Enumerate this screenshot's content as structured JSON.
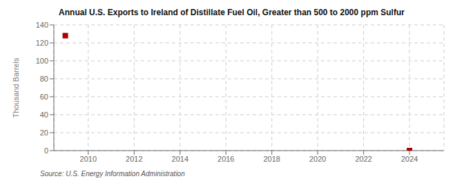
{
  "chart_data": {
    "type": "scatter",
    "title": "Annual U.S. Exports to Ireland of Distillate Fuel Oil, Greater than 500 to 2000 ppm Sulfur",
    "ylabel": "Thousand Barrels",
    "source": "Source: U.S. Energy Information Administration",
    "x": [
      2009,
      2024
    ],
    "values": [
      128,
      0
    ],
    "color": "#aa0000",
    "marker": "square",
    "xlim": [
      2008.5,
      2025.5
    ],
    "ylim": [
      0,
      140
    ],
    "xticks": [
      2010,
      2012,
      2014,
      2016,
      2018,
      2020,
      2022,
      2024
    ],
    "yticks": [
      0,
      20,
      40,
      60,
      80,
      100,
      120,
      140
    ],
    "grid": true
  }
}
